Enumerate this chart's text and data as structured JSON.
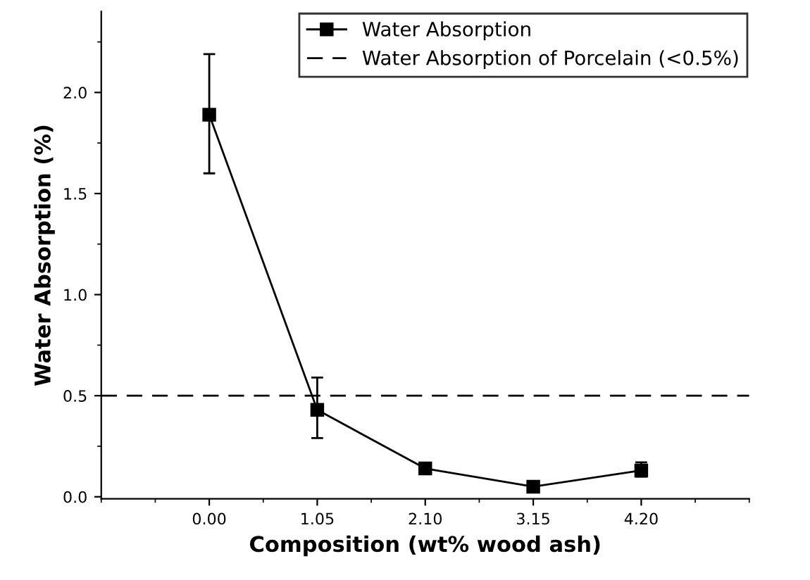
{
  "chart_data": {
    "type": "line",
    "xlabel": "Composition (wt% wood ash)",
    "ylabel": "Water Absorption (%)",
    "x": [
      0,
      1.05,
      2.1,
      3.15,
      4.2
    ],
    "series": [
      {
        "name": "Water Absorption",
        "color": "#000000",
        "values": [
          1.89,
          0.43,
          0.14,
          0.05,
          0.13
        ],
        "errors": [
          [
            1.6,
            2.19
          ],
          [
            0.29,
            0.59
          ],
          null,
          null,
          [
            0.1,
            0.17
          ]
        ]
      }
    ],
    "xlim": [
      -1.05,
      5.25
    ],
    "ylim": [
      -0.01,
      2.4
    ],
    "xticks": [
      {
        "value": 0,
        "label": "0.00"
      },
      {
        "value": 1.05,
        "label": "1.05"
      },
      {
        "value": 2.1,
        "label": "2.10"
      },
      {
        "value": 3.15,
        "label": "3.15"
      },
      {
        "value": 4.2,
        "label": "4.20"
      }
    ],
    "yticks": [
      {
        "value": 0,
        "label": "0.0"
      },
      {
        "value": 0.5,
        "label": "0.5"
      },
      {
        "value": 1,
        "label": "1.0"
      },
      {
        "value": 1.5,
        "label": "1.5"
      },
      {
        "value": 2,
        "label": "2.0"
      }
    ],
    "ref_lines": [
      {
        "axis": "y",
        "value": 0.5,
        "label": "Water Absorption of Porcelain (<0.5%)",
        "color": "#000000",
        "line_style": "dashed"
      }
    ],
    "marker": "square",
    "line_style": "solid",
    "legend": "top right",
    "grid": false
  }
}
